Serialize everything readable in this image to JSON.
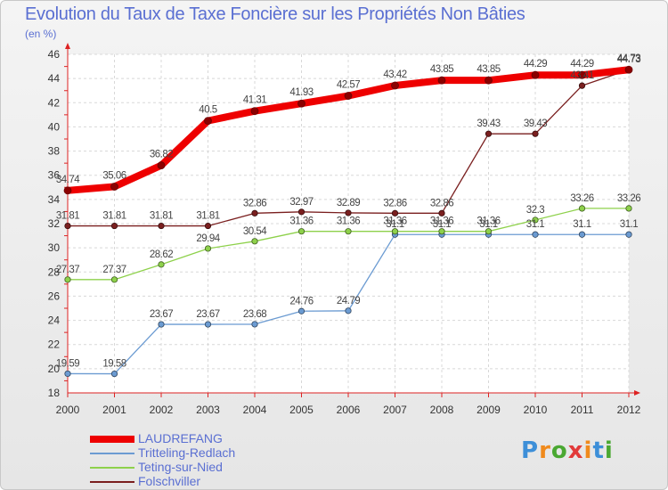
{
  "title": "Evolution du Taux de Taxe Foncière sur les Propriétés Non Bâties",
  "subtitle": "(en %)",
  "logo": {
    "letters": [
      "P",
      "r",
      "o",
      "x",
      "i",
      "t",
      "i"
    ],
    "colors": [
      "#3d8fd8",
      "#f08a1c",
      "#4aa832",
      "#e23a3a",
      "#f08a1c",
      "#3d8fd8",
      "#4aa832"
    ]
  },
  "chart_data": {
    "type": "line",
    "title": "Evolution du Taux de Taxe Foncière sur les Propriétés Non Bâties",
    "ylabel": "(en %)",
    "xlabel": "",
    "x": [
      "2000",
      "2001",
      "2002",
      "2003",
      "2004",
      "2005",
      "2006",
      "2007",
      "2008",
      "2009",
      "2010",
      "2011",
      "2012"
    ],
    "ylim": [
      18,
      46
    ],
    "yticks": [
      "18",
      "20",
      "22",
      "24",
      "26",
      "28",
      "30",
      "32",
      "34",
      "36",
      "38",
      "40",
      "42",
      "44",
      "46"
    ],
    "series": [
      {
        "name": "LAUDREFANG",
        "color": "#ee0000",
        "values": [
          34.74,
          35.06,
          36.82,
          40.5,
          41.31,
          41.93,
          42.57,
          43.42,
          43.85,
          43.85,
          44.29,
          44.29,
          44.73
        ],
        "labels": [
          "34.74",
          "35.06",
          "36.82",
          "40.5",
          "41.31",
          "41.93",
          "42.57",
          "43.42",
          "43.85",
          "43.85",
          "44.29",
          "44.29",
          "44.73"
        ]
      },
      {
        "name": "Tritteling-Redlach",
        "color": "#6b9bd2",
        "values": [
          19.59,
          19.58,
          23.67,
          23.67,
          23.68,
          24.76,
          24.79,
          31.1,
          31.1,
          31.1,
          31.1,
          31.1,
          31.1
        ],
        "labels": [
          "19.59",
          "19.58",
          "23.67",
          "23.67",
          "23.68",
          "24.76",
          "24.79",
          "31.1",
          "31.1",
          "31.1",
          "31.1",
          "31.1",
          "31.1"
        ]
      },
      {
        "name": "Teting-sur-Nied",
        "color": "#8ed14b",
        "values": [
          27.37,
          27.37,
          28.62,
          29.94,
          30.54,
          31.36,
          31.36,
          31.36,
          31.36,
          31.36,
          32.3,
          33.26,
          33.26
        ],
        "labels": [
          "27.37",
          "27.37",
          "28.62",
          "29.94",
          "30.54",
          "31.36",
          "31.36",
          "31.36",
          "31.36",
          "31.36",
          "32.3",
          "33.26",
          "33.26"
        ]
      },
      {
        "name": "Folschviller",
        "color": "#7a1f1f",
        "values": [
          31.81,
          31.81,
          31.81,
          31.81,
          32.86,
          32.97,
          32.89,
          32.86,
          32.86,
          39.43,
          39.43,
          43.41,
          44.73
        ],
        "labels": [
          "31.81",
          "31.81",
          "31.81",
          "31.81",
          "32.86",
          "32.97",
          "32.89",
          "32.86",
          "32.86",
          "39.43",
          "39.43",
          "43.41",
          "44.73"
        ]
      }
    ]
  }
}
